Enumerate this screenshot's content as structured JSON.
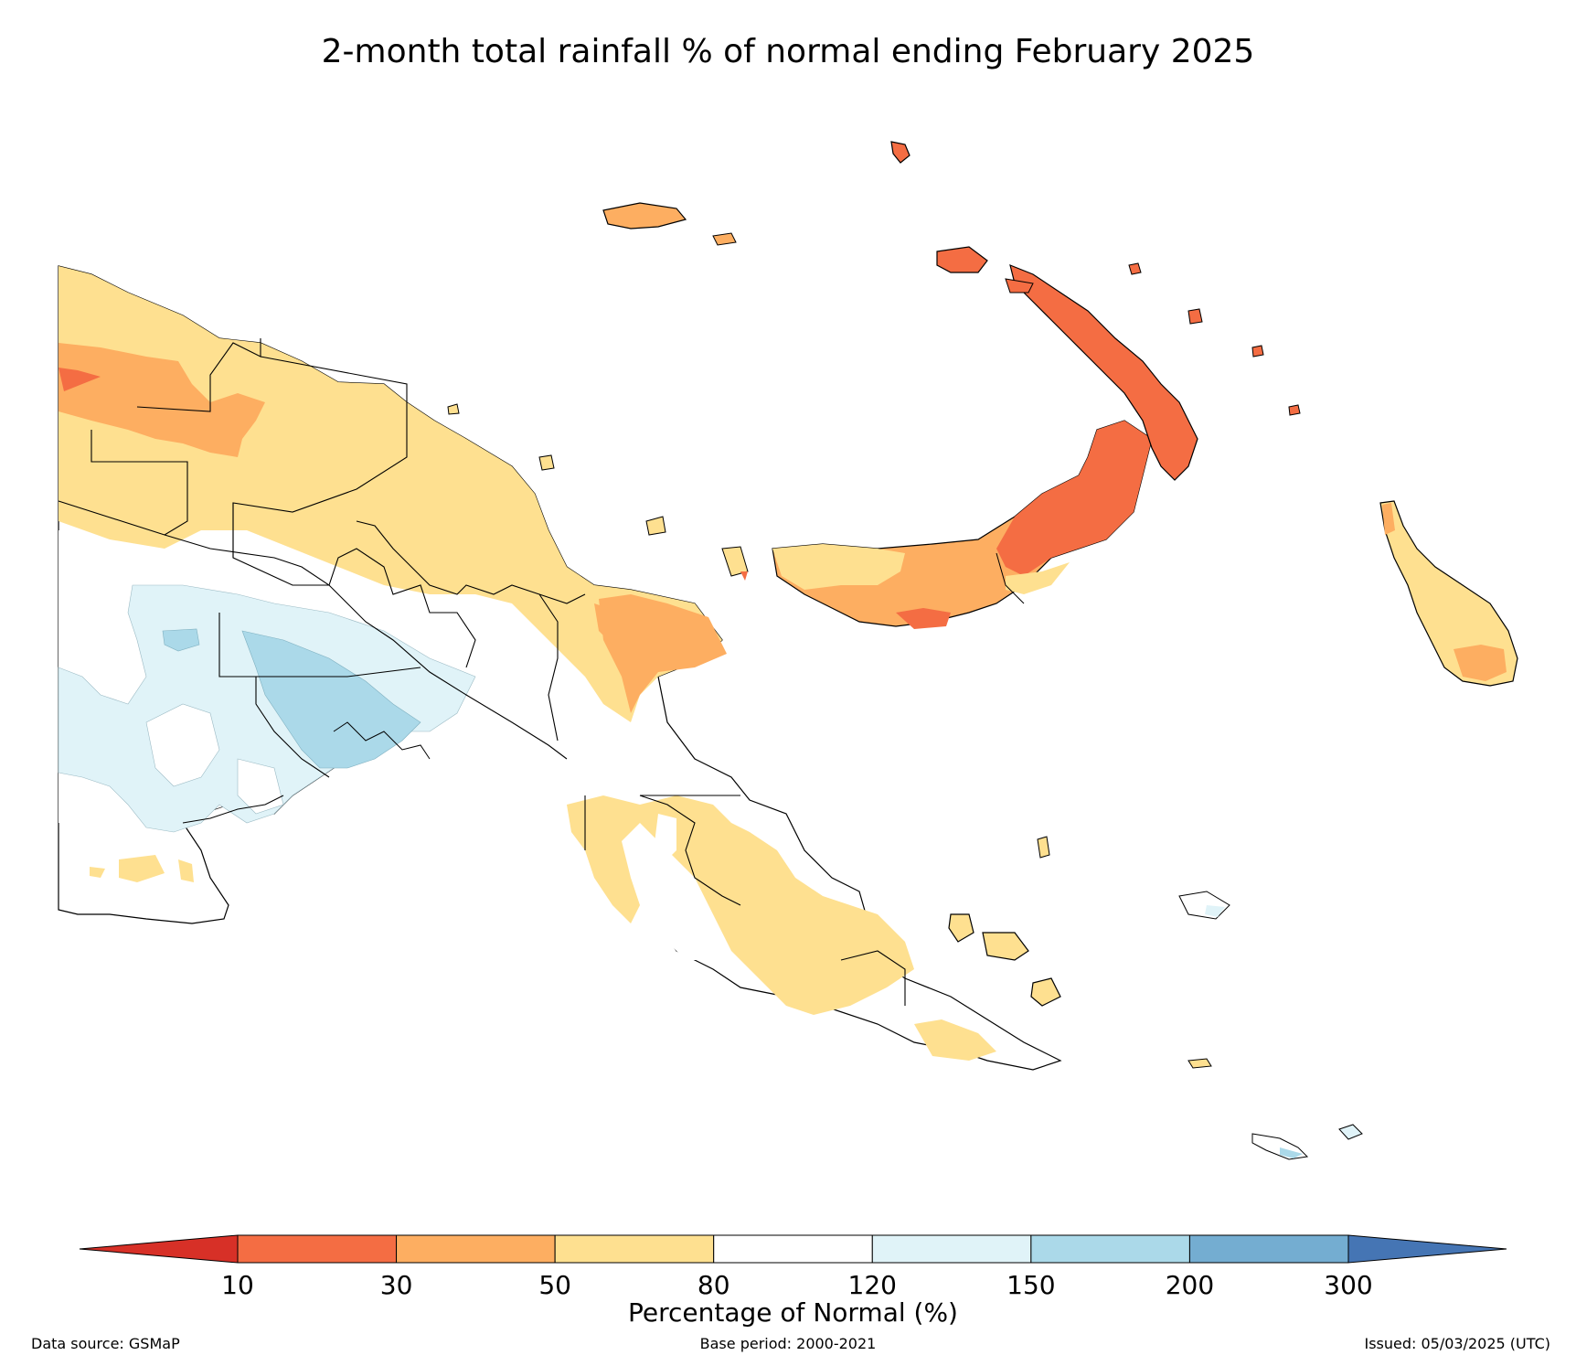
{
  "title": "2-month total rainfall % of normal ending February 2025",
  "colorbar": {
    "label": "Percentage of Normal (%)",
    "extend_low_color": "#d73027",
    "extend_high_color": "#4575b4",
    "bins": [
      {
        "from": "10",
        "to": "30",
        "color": "#f46d43"
      },
      {
        "from": "30",
        "to": "50",
        "color": "#fdae61"
      },
      {
        "from": "50",
        "to": "80",
        "color": "#fee090"
      },
      {
        "from": "80",
        "to": "120",
        "color": "#ffffff"
      },
      {
        "from": "120",
        "to": "150",
        "color": "#e0f3f8"
      },
      {
        "from": "150",
        "to": "200",
        "color": "#abd9e9"
      },
      {
        "from": "200",
        "to": "300",
        "color": "#74add1"
      }
    ],
    "ticks": [
      "10",
      "30",
      "50",
      "80",
      "120",
      "150",
      "200",
      "300"
    ]
  },
  "footer": {
    "source": "Data source: GSMaP",
    "base_period": "Base period: 2000-2021",
    "issued": "Issued: 05/03/2025 (UTC)"
  },
  "map": {
    "region_colors": {
      "yellow": "#fee090",
      "orange": "#fdae61",
      "red": "#f46d43",
      "light_blue": "#e0f3f8",
      "mid_blue": "#abd9e9",
      "white": "#ffffff"
    },
    "outline_color": "#000000"
  }
}
